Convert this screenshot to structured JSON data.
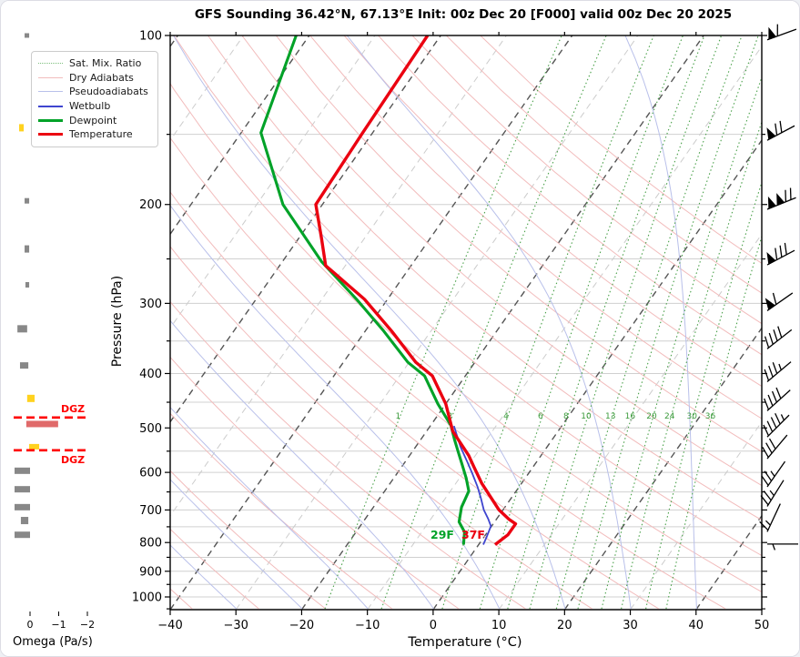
{
  "title": "GFS Sounding 36.42°N, 67.13°E Init: 00z Dec 20 [F000] valid 00z Dec 20 2025",
  "axes": {
    "pressure": {
      "label": "Pressure (hPa)",
      "unit": "hPa",
      "scale": "log",
      "range": [
        100,
        1050
      ],
      "major_ticks": [
        100,
        200,
        300,
        400,
        500,
        600,
        700,
        800,
        900,
        1000
      ],
      "minor_tick_step_hpa": 50
    },
    "temperature": {
      "label": "Temperature (°C)",
      "unit": "°C",
      "range": [
        -40,
        50
      ],
      "ticks": [
        -40,
        -30,
        -20,
        -10,
        0,
        10,
        20,
        30,
        40,
        50
      ],
      "skew_dx_per_dy": 0.7
    }
  },
  "legend": {
    "items": [
      {
        "label": "Sat. Mix. Ratio",
        "color": "#7cbf7c",
        "style": "dotted-thin"
      },
      {
        "label": "Dry Adiabats",
        "color": "#f2bcbc",
        "style": "thin"
      },
      {
        "label": "Pseudoadiabats",
        "color": "#b9c0ea",
        "style": "thin"
      },
      {
        "label": "Wetbulb",
        "color": "#3f45cf",
        "style": "medium"
      },
      {
        "label": "Dewpoint",
        "color": "#00a228",
        "style": "thick"
      },
      {
        "label": "Temperature",
        "color": "#eb0010",
        "style": "thick"
      }
    ]
  },
  "chart_data": {
    "type": "line",
    "subtype": "skew_t_log_p_sounding",
    "xlabel": "Temperature (°C)",
    "ylabel": "Pressure (hPa)",
    "xlim": [
      -40,
      50
    ],
    "ylim": [
      1050,
      100
    ],
    "grid": "horizontal 50 hPa, dashed skewed isotherms every 10°C",
    "series": [
      {
        "name": "Temperature",
        "color": "#eb0010",
        "width": 3.4,
        "points_p_t": [
          [
            100,
            -62
          ],
          [
            150,
            -61.5
          ],
          [
            200,
            -61
          ],
          [
            230,
            -56.5
          ],
          [
            257,
            -53
          ],
          [
            266,
            -50.6
          ],
          [
            295,
            -43.5
          ],
          [
            336,
            -36
          ],
          [
            382,
            -29
          ],
          [
            404,
            -25
          ],
          [
            453,
            -20
          ],
          [
            507,
            -16
          ],
          [
            560,
            -11
          ],
          [
            588,
            -8.9
          ],
          [
            627,
            -6.1
          ],
          [
            663,
            -3.3
          ],
          [
            700,
            -0.6
          ],
          [
            727,
            1.9
          ],
          [
            741,
            3.4
          ],
          [
            775,
            3.4
          ],
          [
            807,
            2.5
          ]
        ]
      },
      {
        "name": "Dewpoint",
        "color": "#00a228",
        "width": 3.1,
        "points_p_t": [
          [
            100,
            -82
          ],
          [
            149,
            -77
          ],
          [
            200,
            -66
          ],
          [
            253,
            -54
          ],
          [
            295,
            -44.7
          ],
          [
            336,
            -37.2
          ],
          [
            382,
            -30.2
          ],
          [
            404,
            -26.2
          ],
          [
            453,
            -21.2
          ],
          [
            495,
            -16.9
          ],
          [
            524,
            -14.9
          ],
          [
            556,
            -12.7
          ],
          [
            585,
            -10.8
          ],
          [
            614,
            -9
          ],
          [
            648,
            -7.2
          ],
          [
            692,
            -6.6
          ],
          [
            735,
            -5.4
          ],
          [
            766,
            -3.5
          ],
          [
            807,
            -2.3
          ]
        ]
      },
      {
        "name": "Wetbulb",
        "color": "#3f45cf",
        "width": 1.8,
        "points_p_t": [
          [
            496,
            -16.4
          ],
          [
            540,
            -13.2
          ],
          [
            574,
            -10.6
          ],
          [
            602,
            -8.6
          ],
          [
            637,
            -6.3
          ],
          [
            667,
            -4.6
          ],
          [
            700,
            -2.9
          ],
          [
            726,
            -1.3
          ],
          [
            748,
            -0.1
          ],
          [
            782,
            0.4
          ],
          [
            807,
            0.7
          ]
        ]
      }
    ],
    "surface_labels": [
      {
        "text": "29F",
        "color": "#00a228",
        "t": -4.8,
        "p": 830
      },
      {
        "text": "37F",
        "color": "#eb0010",
        "t": -0.1,
        "p": 830
      }
    ],
    "mixing_ratio_lines": {
      "values_g_kg": [
        1,
        2,
        4,
        6,
        8,
        10,
        13,
        16,
        20,
        24,
        30,
        36
      ],
      "label_pressure": 487,
      "color": "#49a049"
    },
    "isotherms": {
      "step_c": 10,
      "major_every_c": 20,
      "major_color": "#555555",
      "minor_color": "#cccccc"
    },
    "dry_adiabats": {
      "theta_c_start": -40,
      "theta_c_end": 150,
      "step_c": 10,
      "color": "#f2bcbc"
    },
    "pseudoadiabats": {
      "start_t_c": -60,
      "end_t_c": 50,
      "step_c": 10,
      "color": "#b9c0ea"
    }
  },
  "wind_barbs": [
    {
      "pressure": 100,
      "speed_kt": 60,
      "pennants": 1,
      "full": 1,
      "half": 0,
      "angle_deg": 20
    },
    {
      "pressure": 150,
      "speed_kt": 70,
      "pennants": 1,
      "full": 2,
      "half": 0,
      "angle_deg": 28
    },
    {
      "pressure": 200,
      "speed_kt": 120,
      "pennants": 2,
      "full": 2,
      "half": 0,
      "angle_deg": 22
    },
    {
      "pressure": 250,
      "speed_kt": 80,
      "pennants": 1,
      "full": 3,
      "half": 0,
      "angle_deg": 28
    },
    {
      "pressure": 300,
      "speed_kt": 60,
      "pennants": 1,
      "full": 1,
      "half": 0,
      "angle_deg": 35
    },
    {
      "pressure": 350,
      "speed_kt": 40,
      "pennants": 0,
      "full": 4,
      "half": 0,
      "angle_deg": 38
    },
    {
      "pressure": 400,
      "speed_kt": 35,
      "pennants": 0,
      "full": 3,
      "half": 1,
      "angle_deg": 40
    },
    {
      "pressure": 450,
      "speed_kt": 40,
      "pennants": 0,
      "full": 4,
      "half": 0,
      "angle_deg": 42
    },
    {
      "pressure": 500,
      "speed_kt": 45,
      "pennants": 0,
      "full": 4,
      "half": 1,
      "angle_deg": 45
    },
    {
      "pressure": 545,
      "speed_kt": 30,
      "pennants": 0,
      "full": 3,
      "half": 0,
      "angle_deg": 50
    },
    {
      "pressure": 610,
      "speed_kt": 25,
      "pennants": 0,
      "full": 2,
      "half": 1,
      "angle_deg": 55
    },
    {
      "pressure": 660,
      "speed_kt": 25,
      "pennants": 0,
      "full": 2,
      "half": 1,
      "angle_deg": 58
    },
    {
      "pressure": 730,
      "speed_kt": 15,
      "pennants": 0,
      "full": 1,
      "half": 1,
      "angle_deg": 65
    },
    {
      "pressure": 805,
      "speed_kt": 5,
      "pennants": 0,
      "full": 0,
      "half": 1,
      "angle_deg": 0,
      "flip": true
    }
  ],
  "omega": {
    "label": "Omega (Pa/s)",
    "unit": "Pa/s",
    "ticks": [
      {
        "value": 0,
        "label": "0"
      },
      {
        "value": -1,
        "label": "−1"
      },
      {
        "value": -2,
        "label": "−2"
      }
    ],
    "bars": [
      {
        "pressure": 100,
        "from": 0.19,
        "to": 0.03,
        "color": "#888888",
        "h": 5
      },
      {
        "pressure": 146,
        "from": 0.38,
        "to": 0.22,
        "color": "#ffd21f",
        "h": 8
      },
      {
        "pressure": 197,
        "from": 0.19,
        "to": 0.03,
        "color": "#888888",
        "h": 6
      },
      {
        "pressure": 240,
        "from": 0.19,
        "to": 0.03,
        "color": "#888888",
        "h": 8
      },
      {
        "pressure": 278,
        "from": 0.16,
        "to": 0.03,
        "color": "#888888",
        "h": 6
      },
      {
        "pressure": 333,
        "from": 0.44,
        "to": 0.1,
        "color": "#888888",
        "h": 8
      },
      {
        "pressure": 387,
        "from": 0.35,
        "to": 0.06,
        "color": "#888888",
        "h": 7
      },
      {
        "pressure": 443,
        "from": 0.1,
        "to": -0.16,
        "color": "#ffd21f",
        "h": 8
      },
      {
        "pressure": 492,
        "from": 0.13,
        "to": -0.98,
        "color": "#e06a6a",
        "h": 7
      },
      {
        "pressure": 540,
        "from": 0.03,
        "to": -0.32,
        "color": "#ffd21f",
        "h": 6
      },
      {
        "pressure": 596,
        "from": 0.54,
        "to": 0.0,
        "color": "#888888",
        "h": 7
      },
      {
        "pressure": 643,
        "from": 0.54,
        "to": 0.0,
        "color": "#888888",
        "h": 7
      },
      {
        "pressure": 692,
        "from": 0.54,
        "to": 0.0,
        "color": "#888888",
        "h": 7
      },
      {
        "pressure": 731,
        "from": 0.32,
        "to": 0.06,
        "color": "#888888",
        "h": 8
      },
      {
        "pressure": 775,
        "from": 0.54,
        "to": 0.0,
        "color": "#888888",
        "h": 7
      }
    ],
    "dgz_markers": [
      {
        "label": "DGZ",
        "pressure": 479,
        "label_side": "above"
      },
      {
        "label": "DGZ",
        "pressure": 548,
        "label_side": "below"
      }
    ],
    "dgz_color": "#ff0000"
  },
  "colors": {
    "temperature": "#eb0010",
    "dewpoint": "#00a228",
    "wetbulb": "#3f45cf",
    "dry_adiabat": "#f2bcbc",
    "pseudoadiabat": "#b9c0ea",
    "mixing_ratio": "#49a049",
    "isotherm_major": "#555555",
    "isotherm_minor": "#cccccc",
    "grid": "#d0d0d0",
    "spine": "#000000",
    "dgz": "#ff0000",
    "barb": "#000000"
  }
}
